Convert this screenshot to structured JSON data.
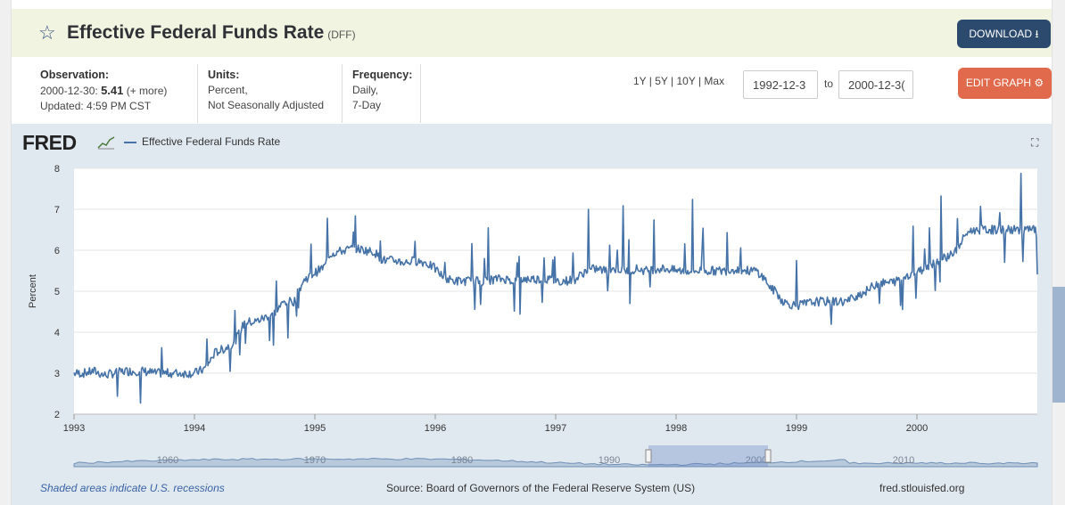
{
  "header": {
    "title": "Effective Federal Funds Rate",
    "series_id": "(DFF)",
    "download_label": "DOWNLOAD"
  },
  "info": {
    "observation_label": "Observation:",
    "observation_date": "2000-12-30:",
    "observation_value": "5.41",
    "observation_more": "(+ more)",
    "updated": "Updated: 4:59 PM CST",
    "units_label": "Units:",
    "units_line1": "Percent,",
    "units_line2": "Not Seasonally Adjusted",
    "frequency_label": "Frequency:",
    "frequency_line1": "Daily,",
    "frequency_line2": "7-Day"
  },
  "controls": {
    "range_links": "1Y | 5Y | 10Y | Max",
    "start_date": "1992-12-3",
    "to_label": "to",
    "end_date": "2000-12-3(",
    "edit_label": "EDIT GRAPH"
  },
  "graph": {
    "logo_text": "FRED",
    "legend_label": "Effective Federal Funds Rate",
    "fullscreen_icon": "expand-icon",
    "footer_recessions": "Shaded areas indicate U.S. recessions",
    "footer_source": "Source: Board of Governors of the Federal Reserve System (US)",
    "footer_site": "fred.stlouisfed.org"
  },
  "colors": {
    "line": "#4572a7",
    "header_bg": "#f2f4e2",
    "download_btn": "#2c4a6e",
    "edit_btn": "#e06a4b"
  },
  "chart_data": {
    "type": "line",
    "title": "",
    "xlabel": "",
    "ylabel": "Percent",
    "ylim": [
      2,
      8
    ],
    "yticks": [
      "2",
      "3",
      "4",
      "5",
      "6",
      "7",
      "8"
    ],
    "xlim": [
      1993.0,
      2001.0
    ],
    "xticks": [
      "1993",
      "1994",
      "1995",
      "1996",
      "1997",
      "1998",
      "1999",
      "2000"
    ],
    "grid": true,
    "legend": "top-left",
    "series": [
      {
        "name": "Effective Federal Funds Rate",
        "x": [
          1993.0,
          1993.08,
          1993.17,
          1993.25,
          1993.33,
          1993.42,
          1993.5,
          1993.58,
          1993.67,
          1993.75,
          1993.83,
          1993.92,
          1994.0,
          1994.08,
          1994.12,
          1994.17,
          1994.25,
          1994.33,
          1994.42,
          1994.5,
          1994.58,
          1994.67,
          1994.75,
          1994.83,
          1994.87,
          1994.92,
          1995.0,
          1995.08,
          1995.12,
          1995.17,
          1995.25,
          1995.33,
          1995.42,
          1995.5,
          1995.54,
          1995.58,
          1995.67,
          1995.75,
          1995.83,
          1995.92,
          1996.0,
          1996.08,
          1996.17,
          1996.25,
          1996.33,
          1996.42,
          1996.5,
          1996.58,
          1996.67,
          1996.75,
          1996.83,
          1996.92,
          1997.0,
          1997.08,
          1997.17,
          1997.25,
          1997.33,
          1997.42,
          1997.5,
          1997.58,
          1997.67,
          1997.75,
          1997.83,
          1997.92,
          1998.0,
          1998.08,
          1998.17,
          1998.25,
          1998.33,
          1998.42,
          1998.5,
          1998.58,
          1998.67,
          1998.75,
          1998.79,
          1998.83,
          1998.87,
          1998.92,
          1999.0,
          1999.08,
          1999.17,
          1999.25,
          1999.33,
          1999.42,
          1999.5,
          1999.58,
          1999.67,
          1999.75,
          1999.83,
          1999.92,
          2000.0,
          2000.08,
          2000.17,
          2000.25,
          2000.33,
          2000.42,
          2000.5,
          2000.58,
          2000.67,
          2000.75,
          2000.83,
          2000.92,
          2000.99,
          2001.0
        ],
        "y": [
          3.0,
          3.0,
          3.05,
          2.95,
          3.0,
          3.05,
          3.05,
          3.05,
          3.0,
          3.0,
          3.0,
          3.0,
          3.0,
          3.1,
          3.25,
          3.5,
          3.6,
          3.75,
          4.25,
          4.25,
          4.35,
          4.5,
          4.75,
          4.75,
          5.05,
          5.3,
          5.45,
          5.6,
          5.9,
          5.95,
          6.0,
          6.05,
          6.0,
          5.95,
          5.8,
          5.75,
          5.75,
          5.7,
          5.75,
          5.7,
          5.55,
          5.3,
          5.25,
          5.25,
          5.25,
          5.25,
          5.3,
          5.3,
          5.25,
          5.3,
          5.3,
          5.3,
          5.25,
          5.25,
          5.3,
          5.5,
          5.55,
          5.5,
          5.55,
          5.5,
          5.55,
          5.5,
          5.55,
          5.55,
          5.5,
          5.5,
          5.5,
          5.5,
          5.5,
          5.5,
          5.55,
          5.5,
          5.5,
          5.25,
          5.05,
          5.0,
          4.8,
          4.7,
          4.65,
          4.7,
          4.75,
          4.75,
          4.75,
          4.75,
          4.9,
          5.0,
          5.2,
          5.2,
          5.25,
          5.4,
          5.45,
          5.6,
          5.75,
          5.85,
          6.0,
          6.45,
          6.5,
          6.5,
          6.5,
          6.5,
          6.5,
          6.5,
          6.5,
          5.41
        ]
      }
    ],
    "navigator": {
      "tick_labels": [
        "1960",
        "1970",
        "1980",
        "1990",
        "2000",
        "2010"
      ],
      "selected_range": [
        "1992-12-30",
        "2000-12-30"
      ]
    }
  }
}
